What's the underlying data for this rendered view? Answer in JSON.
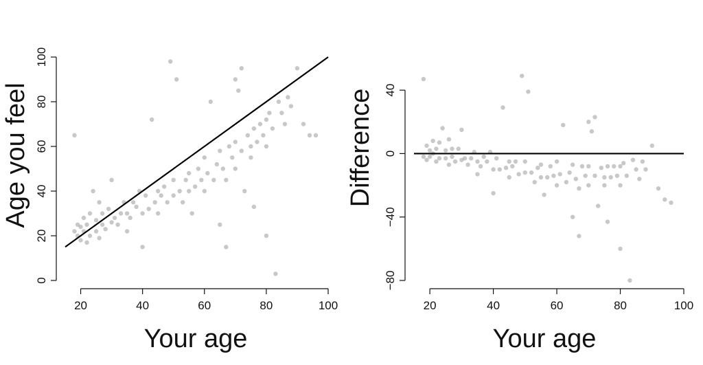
{
  "chart_data": [
    {
      "type": "scatter",
      "xlabel": "Your age",
      "ylabel": "Age you feel",
      "xlim": [
        15,
        100
      ],
      "ylim": [
        0,
        100
      ],
      "xticks": [
        "20",
        "40",
        "60",
        "80",
        "100"
      ],
      "yticks": [
        "0",
        "20",
        "40",
        "60",
        "80",
        "100"
      ],
      "reference_line": {
        "x": [
          15,
          100
        ],
        "y": [
          15,
          100
        ]
      },
      "point_color": "#9a9a9a",
      "points": [
        [
          18,
          65
        ],
        [
          18,
          22
        ],
        [
          19,
          25
        ],
        [
          19,
          20
        ],
        [
          20,
          18
        ],
        [
          20,
          24
        ],
        [
          21,
          22
        ],
        [
          21,
          28
        ],
        [
          22,
          17
        ],
        [
          22,
          25
        ],
        [
          23,
          20
        ],
        [
          23,
          30
        ],
        [
          24,
          40
        ],
        [
          25,
          22
        ],
        [
          25,
          27
        ],
        [
          26,
          19
        ],
        [
          26,
          35
        ],
        [
          27,
          25
        ],
        [
          27,
          30
        ],
        [
          28,
          23
        ],
        [
          29,
          32
        ],
        [
          30,
          26
        ],
        [
          30,
          45
        ],
        [
          31,
          28
        ],
        [
          32,
          25
        ],
        [
          33,
          30
        ],
        [
          34,
          35
        ],
        [
          35,
          30
        ],
        [
          35,
          22
        ],
        [
          36,
          28
        ],
        [
          37,
          35
        ],
        [
          38,
          33
        ],
        [
          39,
          40
        ],
        [
          40,
          30
        ],
        [
          40,
          15
        ],
        [
          41,
          38
        ],
        [
          42,
          32
        ],
        [
          43,
          72
        ],
        [
          44,
          35
        ],
        [
          45,
          40
        ],
        [
          45,
          30
        ],
        [
          46,
          38
        ],
        [
          47,
          42
        ],
        [
          48,
          35
        ],
        [
          49,
          98
        ],
        [
          50,
          45
        ],
        [
          50,
          38
        ],
        [
          51,
          90
        ],
        [
          52,
          40
        ],
        [
          53,
          35
        ],
        [
          54,
          45
        ],
        [
          55,
          48
        ],
        [
          55,
          40
        ],
        [
          56,
          30
        ],
        [
          57,
          42
        ],
        [
          58,
          50
        ],
        [
          59,
          45
        ],
        [
          60,
          40
        ],
        [
          60,
          55
        ],
        [
          61,
          48
        ],
        [
          62,
          80
        ],
        [
          63,
          45
        ],
        [
          64,
          52
        ],
        [
          65,
          25
        ],
        [
          65,
          58
        ],
        [
          66,
          50
        ],
        [
          67,
          45
        ],
        [
          68,
          60
        ],
        [
          69,
          55
        ],
        [
          70,
          50
        ],
        [
          70,
          62
        ],
        [
          71,
          85
        ],
        [
          72,
          58
        ],
        [
          73,
          40
        ],
        [
          74,
          65
        ],
        [
          75,
          60
        ],
        [
          75,
          55
        ],
        [
          76,
          68
        ],
        [
          77,
          62
        ],
        [
          78,
          70
        ],
        [
          79,
          65
        ],
        [
          80,
          60
        ],
        [
          80,
          72
        ],
        [
          81,
          75
        ],
        [
          82,
          68
        ],
        [
          83,
          3
        ],
        [
          84,
          80
        ],
        [
          85,
          75
        ],
        [
          86,
          70
        ],
        [
          87,
          82
        ],
        [
          88,
          78
        ],
        [
          90,
          95
        ],
        [
          92,
          70
        ],
        [
          94,
          65
        ],
        [
          96,
          65
        ],
        [
          80,
          20
        ],
        [
          76,
          33
        ],
        [
          67,
          15
        ],
        [
          70,
          90
        ],
        [
          72,
          95
        ]
      ]
    },
    {
      "type": "scatter",
      "xlabel": "Your age",
      "ylabel": "Difference",
      "xlim": [
        15,
        100
      ],
      "ylim": [
        -80,
        60
      ],
      "xticks": [
        "20",
        "40",
        "60",
        "80",
        "100"
      ],
      "yticks": [
        "−80",
        "−40",
        "0",
        "40"
      ],
      "reference_line": {
        "x": [
          15,
          100
        ],
        "y": [
          0,
          0
        ]
      },
      "point_color": "#9a9a9a",
      "points": [
        [
          18,
          47
        ],
        [
          18,
          -2
        ],
        [
          19,
          5
        ],
        [
          19,
          -4
        ],
        [
          20,
          2
        ],
        [
          20,
          -2
        ],
        [
          21,
          0
        ],
        [
          21,
          8
        ],
        [
          22,
          -5
        ],
        [
          22,
          3
        ],
        [
          23,
          -3
        ],
        [
          23,
          7
        ],
        [
          24,
          16
        ],
        [
          25,
          -3
        ],
        [
          25,
          2
        ],
        [
          26,
          -7
        ],
        [
          26,
          9
        ],
        [
          27,
          -2
        ],
        [
          27,
          3
        ],
        [
          28,
          -5
        ],
        [
          29,
          3
        ],
        [
          30,
          -4
        ],
        [
          30,
          15
        ],
        [
          31,
          -3
        ],
        [
          32,
          -7
        ],
        [
          33,
          -3
        ],
        [
          34,
          1
        ],
        [
          35,
          -5
        ],
        [
          35,
          -13
        ],
        [
          36,
          -8
        ],
        [
          37,
          -2
        ],
        [
          38,
          -5
        ],
        [
          39,
          1
        ],
        [
          40,
          -10
        ],
        [
          40,
          -25
        ],
        [
          41,
          -3
        ],
        [
          42,
          -10
        ],
        [
          43,
          29
        ],
        [
          44,
          -9
        ],
        [
          45,
          -5
        ],
        [
          45,
          -15
        ],
        [
          46,
          -8
        ],
        [
          47,
          -5
        ],
        [
          48,
          -13
        ],
        [
          49,
          49
        ],
        [
          50,
          -5
        ],
        [
          50,
          -12
        ],
        [
          51,
          39
        ],
        [
          52,
          -12
        ],
        [
          53,
          -18
        ],
        [
          54,
          -9
        ],
        [
          55,
          -7
        ],
        [
          55,
          -15
        ],
        [
          56,
          -26
        ],
        [
          57,
          -15
        ],
        [
          58,
          -8
        ],
        [
          59,
          -14
        ],
        [
          60,
          -20
        ],
        [
          60,
          -5
        ],
        [
          61,
          -13
        ],
        [
          62,
          18
        ],
        [
          63,
          -18
        ],
        [
          64,
          -12
        ],
        [
          65,
          -40
        ],
        [
          65,
          -7
        ],
        [
          66,
          -16
        ],
        [
          67,
          -22
        ],
        [
          68,
          -8
        ],
        [
          69,
          -14
        ],
        [
          70,
          -20
        ],
        [
          70,
          -8
        ],
        [
          71,
          14
        ],
        [
          72,
          -14
        ],
        [
          73,
          -33
        ],
        [
          74,
          -9
        ],
        [
          75,
          -15
        ],
        [
          75,
          -20
        ],
        [
          76,
          -8
        ],
        [
          77,
          -15
        ],
        [
          78,
          -8
        ],
        [
          79,
          -14
        ],
        [
          80,
          -20
        ],
        [
          80,
          -8
        ],
        [
          81,
          -6
        ],
        [
          82,
          -14
        ],
        [
          83,
          -80
        ],
        [
          84,
          -4
        ],
        [
          85,
          -10
        ],
        [
          86,
          -16
        ],
        [
          87,
          -5
        ],
        [
          88,
          -10
        ],
        [
          90,
          5
        ],
        [
          92,
          -22
        ],
        [
          94,
          -29
        ],
        [
          96,
          -31
        ],
        [
          80,
          -60
        ],
        [
          76,
          -43
        ],
        [
          67,
          -52
        ],
        [
          70,
          20
        ],
        [
          72,
          23
        ]
      ]
    }
  ]
}
